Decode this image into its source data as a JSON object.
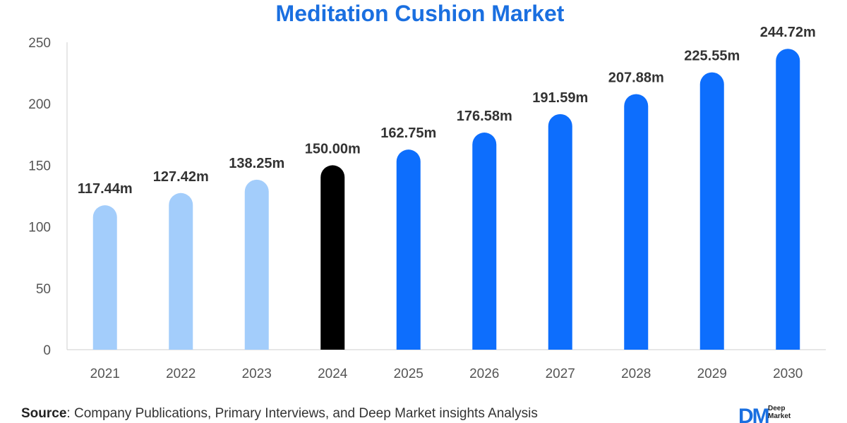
{
  "chart_data": {
    "type": "bar",
    "title": "Meditation Cushion Market",
    "xlabel": "",
    "ylabel": "",
    "categories": [
      "2021",
      "2022",
      "2023",
      "2024",
      "2025",
      "2026",
      "2027",
      "2028",
      "2029",
      "2030"
    ],
    "values": [
      117.44,
      127.42,
      138.25,
      150.0,
      162.75,
      176.58,
      191.59,
      207.88,
      225.55,
      244.72
    ],
    "value_labels": [
      "117.44m",
      "127.42m",
      "138.25m",
      "150.00m",
      "162.75m",
      "176.58m",
      "191.59m",
      "207.88m",
      "225.55m",
      "244.72m"
    ],
    "bar_colors": [
      "#a3cdfb",
      "#a3cdfb",
      "#a3cdfb",
      "#000000",
      "#0d6efd",
      "#0d6efd",
      "#0d6efd",
      "#0d6efd",
      "#0d6efd",
      "#0d6efd"
    ],
    "ylim": [
      0,
      250
    ],
    "yticks": [
      0,
      50,
      100,
      150,
      200,
      250
    ],
    "grid": false
  },
  "source": {
    "label": "Source",
    "text": ": Company Publications, Primary Interviews, and Deep Market insights Analysis"
  },
  "logo": {
    "mark": "DM",
    "line1": "Deep",
    "line2": "Market"
  },
  "colors": {
    "title": "#1a6fe0",
    "historical": "#a3cdfb",
    "base_year": "#000000",
    "forecast": "#0d6efd"
  }
}
